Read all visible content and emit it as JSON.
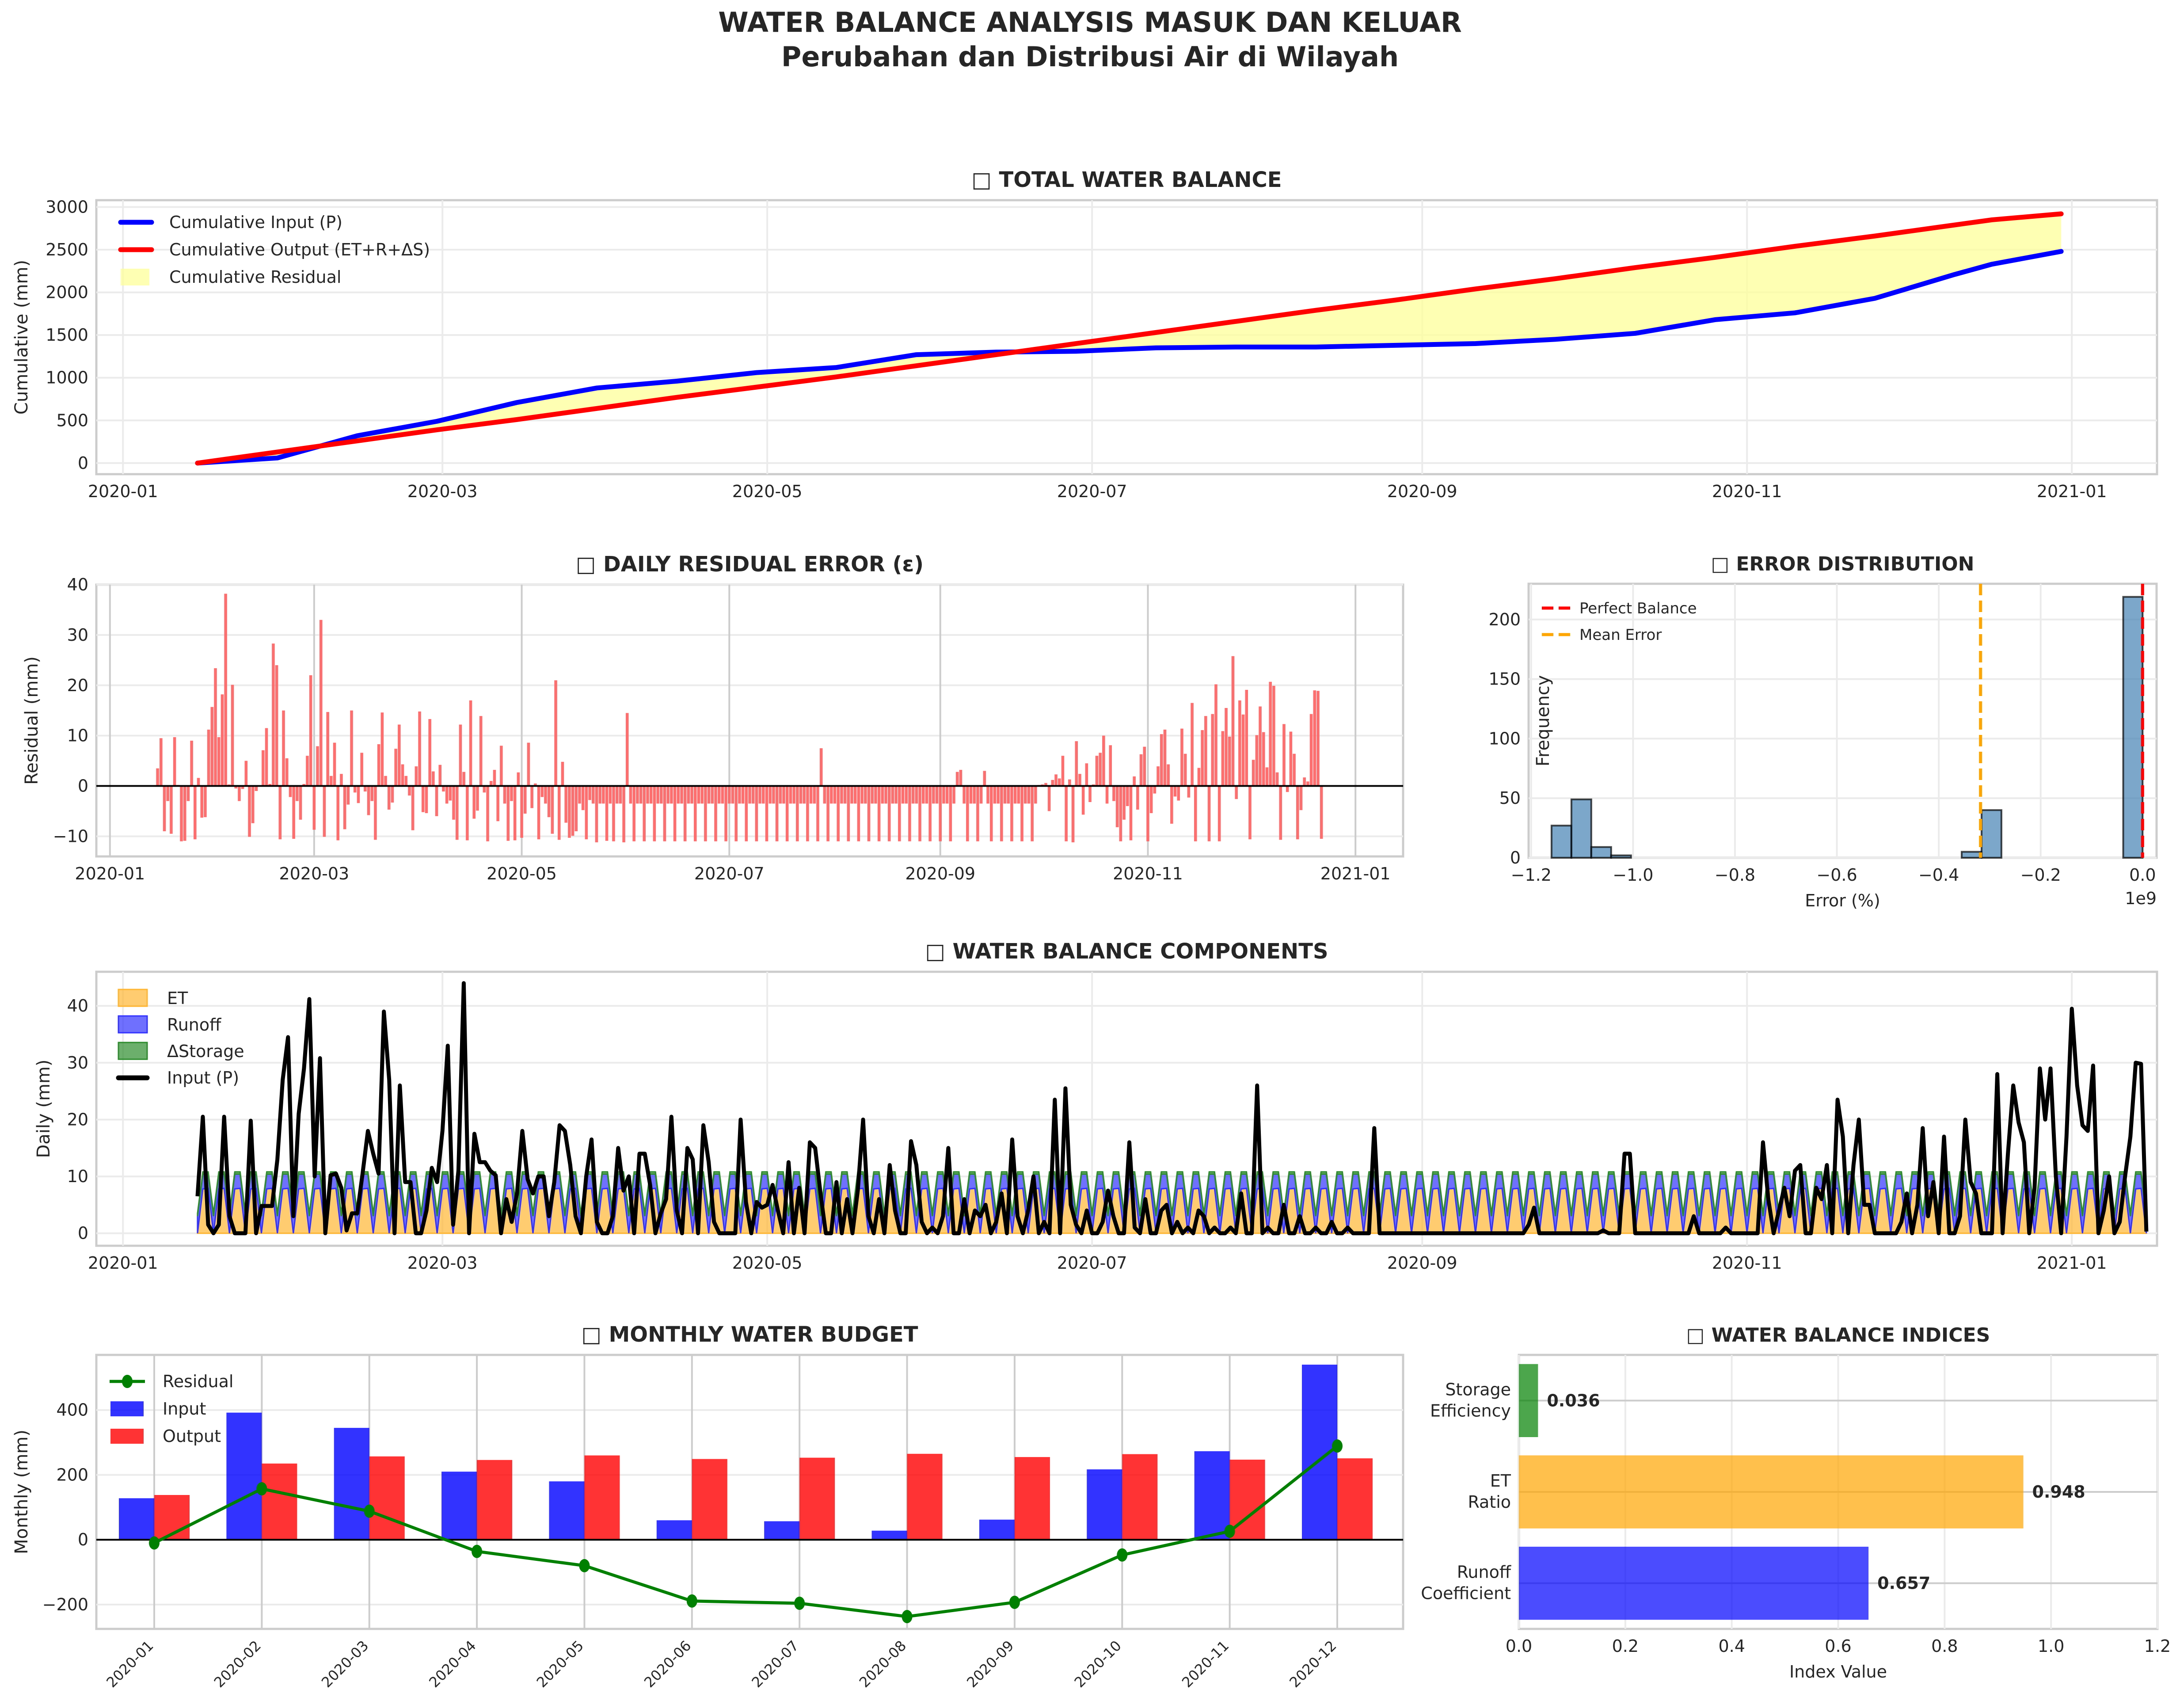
{
  "figure": {
    "title_line1": "WATER BALANCE ANALYSIS MASUK DAN KELUAR",
    "title_line2": "Perubahan dan Distribusi Air di Wilayah"
  },
  "chart_data": [
    {
      "id": "total",
      "type": "line",
      "title": "□ TOTAL WATER BALANCE",
      "xlabel": "",
      "ylabel": "Cumulative (mm)",
      "x_range": [
        "2020-01-01",
        "2021-01-15"
      ],
      "ylim": [
        -130,
        3080
      ],
      "yticks": [
        0,
        500,
        1000,
        1500,
        2000,
        2500,
        3000
      ],
      "xticks": [
        "2020-01",
        "2020-03",
        "2020-05",
        "2020-07",
        "2020-09",
        "2020-11",
        "2021-01"
      ],
      "grid": true,
      "legend_position": "top-left",
      "legend": [
        "Cumulative Input (P)",
        "Cumulative Output (ET+R+ΔS)",
        "Cumulative Residual"
      ],
      "colors": {
        "input": "#0000ff",
        "output": "#ff0000",
        "fill": "#ffff99"
      },
      "x_day_of_year": [
        15,
        30,
        45,
        60,
        75,
        90,
        105,
        120,
        135,
        150,
        165,
        180,
        195,
        210,
        225,
        240,
        255,
        270,
        285,
        300,
        315,
        330,
        345,
        352,
        365
      ],
      "series": [
        {
          "name": "Cumulative Input (P)",
          "values": [
            0,
            60,
            320,
            490,
            710,
            880,
            960,
            1060,
            1120,
            1270,
            1300,
            1310,
            1350,
            1360,
            1360,
            1380,
            1400,
            1450,
            1520,
            1680,
            1760,
            1930,
            2210,
            2330,
            2480
          ]
        },
        {
          "name": "Cumulative Output (ET+R+ΔS)",
          "values": [
            0,
            130,
            260,
            390,
            510,
            640,
            770,
            890,
            1010,
            1140,
            1270,
            1400,
            1530,
            1660,
            1790,
            1910,
            2040,
            2160,
            2290,
            2410,
            2540,
            2660,
            2790,
            2850,
            2920
          ]
        }
      ]
    },
    {
      "id": "residual",
      "type": "bar",
      "title": "□ DAILY RESIDUAL ERROR (ε)",
      "xlabel": "",
      "ylabel": "Residual (mm)",
      "ylim": [
        -14,
        40
      ],
      "yticks": [
        -10,
        0,
        10,
        20,
        30,
        40
      ],
      "xticks": [
        "2020-01",
        "2020-03",
        "2020-05",
        "2020-07",
        "2020-09",
        "2020-11",
        "2021-01"
      ],
      "grid": true,
      "color": "#ff6666",
      "start_day_of_year": 15,
      "values": [
        3.5,
        9.5,
        -9,
        -3,
        -9.5,
        9.7,
        0.2,
        -11,
        -10.9,
        -3,
        9,
        -10.6,
        1.6,
        -6.3,
        -6.2,
        11.2,
        15.7,
        23.4,
        9.7,
        18.2,
        38.2,
        0.3,
        20.1,
        -0.5,
        -3,
        -0.6,
        5,
        -10.1,
        -7.4,
        -1,
        0.1,
        7.1,
        11.5,
        0.4,
        28.3,
        24,
        -10.6,
        15,
        5.5,
        -2.2,
        -10.5,
        -3,
        -6.7,
        0.4,
        6,
        22,
        -8.7,
        7.9,
        33,
        -10.1,
        14.7,
        2,
        8.6,
        -10.8,
        2.4,
        -8.6,
        -3.7,
        15,
        -1.3,
        -3.4,
        6.6,
        -1.1,
        -5.8,
        -3,
        -10.7,
        8.3,
        14.6,
        2,
        -4.7,
        -3.3,
        7.4,
        12.2,
        4.3,
        2,
        -1.9,
        -8.8,
        3.9,
        14.8,
        -5.2,
        -5.4,
        13.3,
        2.9,
        -6,
        4.2,
        -1.1,
        -3.5,
        -2.9,
        -6.7,
        -10.7,
        12.2,
        2.8,
        -10.8,
        17,
        -6.5,
        -4.9,
        13.9,
        -1.3,
        -11,
        1,
        3.2,
        -7,
        8,
        -3.5,
        -10.9,
        -3,
        -10.8,
        2.7,
        -10.3,
        -5.5,
        8.6,
        -4.4,
        0.5,
        -10.6,
        -2.2,
        -3.5,
        -6.2,
        -9.5,
        21,
        -10.7,
        4.8,
        -7.3,
        -10.3,
        -9.9,
        -9,
        -3.5,
        -4.8,
        -10.6,
        -2.8,
        -3.5,
        -11.2,
        -3.5,
        -3.5,
        -10.9,
        -3.5,
        -11,
        -3.5,
        -3.5,
        -11.2,
        14.5,
        -3.5,
        -11,
        -3.5,
        -3.5,
        -11,
        -3.5,
        -3.5,
        -11,
        -3.5,
        -3.5,
        -11,
        -3.5,
        -3.5,
        -11,
        -3.5,
        -3.5,
        -11,
        -3.5,
        -3.5,
        -11,
        -3.5,
        -3.5,
        -11,
        -3.5,
        -3.5,
        -11,
        -3.5,
        -3.5,
        -11,
        -3.5,
        -3.5,
        -11,
        -3.5,
        -3.5,
        -11,
        -3.5,
        -3.5,
        -11,
        -3.5,
        -3.5,
        -11,
        -3.5,
        -3.5,
        -11,
        -3.5,
        -3.5,
        -11,
        -3.5,
        -3.5,
        -11,
        -3.5,
        -3.5,
        -11,
        -3.5,
        -3.5,
        -11,
        7.5,
        -3.5,
        -11,
        -3.5,
        -3.5,
        -11,
        -3.5,
        -3.5,
        -11,
        -3.5,
        -3.5,
        -11,
        -3.5,
        -3.5,
        -11,
        -3.5,
        -3.5,
        -11,
        -3.5,
        -3.5,
        -11,
        -3.5,
        -3.5,
        -11,
        -3.5,
        -3.5,
        -11,
        -3.5,
        -3.5,
        -11,
        -3.5,
        -3.5,
        -11,
        -3.5,
        -3.5,
        -11,
        -3.5,
        -3.5,
        -11,
        -3.5,
        2.8,
        3.2,
        -3.5,
        -11,
        -3.5,
        -3.5,
        -11,
        -3.5,
        3,
        -3.5,
        -11,
        -3.5,
        -3.5,
        -11,
        -3.5,
        -3.5,
        -11,
        -3.5,
        -3.5,
        -11,
        -3.5,
        -3.5,
        -11,
        -3.5,
        0.2,
        0.3,
        0.6,
        -5,
        1.2,
        2.3,
        1.5,
        6,
        -11,
        1.3,
        -11.2,
        8.9,
        2.4,
        -5.7,
        4.5,
        -3.2,
        0.3,
        6,
        6.6,
        10,
        -3.5,
        8.1,
        -3,
        -8.2,
        -11,
        -6.7,
        -4,
        -10.8,
        1.9,
        -4.7,
        6.3,
        7.8,
        -11,
        -5.4,
        -1.5,
        3.9,
        10.3,
        11.2,
        4.3,
        -7.5,
        -2.1,
        -2.9,
        11.4,
        6.4,
        -2.3,
        16.5,
        -11,
        3.6,
        11.1,
        13.9,
        -11,
        14.3,
        20.2,
        -11,
        10.9,
        15.5,
        9.8,
        25.8,
        -2.6,
        17,
        14.2,
        19.1,
        -10.6,
        5.2,
        10.1,
        15.8,
        10.7,
        3.7,
        20.7,
        19.9,
        2.7,
        -10.7,
        12.3,
        -1.2,
        10.8,
        6.4,
        -10.6,
        -4.8,
        1.7,
        0.9,
        14.3,
        19,
        18.9,
        -10.5
      ]
    },
    {
      "id": "error_hist",
      "type": "bar",
      "title": "□ ERROR DISTRIBUTION",
      "xlabel": "Error (%)",
      "ylabel": "Frequency",
      "x_scale_note": "1e9",
      "xlim": [
        -1.205,
        0.0275
      ],
      "ylim": [
        0,
        230
      ],
      "xticks": [
        -1.2,
        -1.0,
        -0.8,
        -0.6,
        -0.4,
        -0.2,
        0.0
      ],
      "xtick_labels": [
        "−1.2",
        "−1.0",
        "−0.8",
        "−0.6",
        "−0.4",
        "−0.2",
        "0.0"
      ],
      "yticks": [
        0,
        50,
        100,
        150,
        200
      ],
      "grid": true,
      "legend_position": "top-left",
      "bar_color": "#4682b4",
      "bins": [
        {
          "x0": -1.16,
          "x1": -1.121,
          "count": 27
        },
        {
          "x0": -1.121,
          "x1": -1.082,
          "count": 49
        },
        {
          "x0": -1.082,
          "x1": -1.043,
          "count": 9
        },
        {
          "x0": -1.043,
          "x1": -1.004,
          "count": 2
        },
        {
          "x0": -0.355,
          "x1": -0.316,
          "count": 5
        },
        {
          "x0": -0.316,
          "x1": -0.277,
          "count": 40
        },
        {
          "x0": -0.038,
          "x1": 0.0,
          "count": 219
        }
      ],
      "vlines": [
        {
          "label": "Perfect Balance",
          "x": 0.0,
          "color": "#ff0000"
        },
        {
          "label": "Mean Error",
          "x": -0.318,
          "color": "#ffa500"
        }
      ]
    },
    {
      "id": "components",
      "type": "area",
      "title": "□ WATER BALANCE COMPONENTS",
      "xlabel": "",
      "ylabel": "Daily (mm)",
      "ylim": [
        -2.2,
        46
      ],
      "yticks": [
        0,
        10,
        20,
        30,
        40
      ],
      "xticks": [
        "2020-01",
        "2020-03",
        "2020-05",
        "2020-07",
        "2020-09",
        "2020-11",
        "2021-01"
      ],
      "grid": true,
      "legend_position": "top-left",
      "legend": [
        "ET",
        "Runoff",
        "ΔStorage",
        "Input (P)"
      ],
      "colors": {
        "et": "#ffb733",
        "runoff": "#3333ff",
        "storage": "#2e8b2e",
        "input": "#000000"
      },
      "start_day_of_year": 15,
      "pattern_note": "stacked components repeat with a ~3-day cycle: ET ~8 mm, Runoff ~+2.5 mm, ΔStorage ~+0.3 mm, dropping to ~0 every third day",
      "et_cycle": [
        0,
        7.8,
        7.9
      ],
      "runoff_cycle": [
        3,
        2.6,
        2.5
      ],
      "storage_cycle": [
        0.5,
        0.4,
        0.4
      ],
      "input_values": [
        6.5,
        20.5,
        1.5,
        0,
        1.5,
        20.5,
        3,
        0,
        0,
        0,
        19.8,
        0,
        4.8,
        4.8,
        4.8,
        13,
        27,
        34.5,
        3,
        21,
        29,
        41.2,
        10,
        30.8,
        0,
        10.2,
        10.5,
        8,
        0.5,
        3.5,
        3.5,
        10.5,
        18,
        14,
        10.5,
        39,
        27,
        0,
        26,
        9,
        9,
        0,
        0,
        4,
        11.5,
        9,
        18,
        33,
        1.5,
        11,
        44,
        0,
        17.5,
        12.5,
        12.5,
        11,
        10.2,
        0,
        6,
        2,
        7,
        18,
        9.5,
        7,
        10,
        10,
        3,
        9,
        19,
        18,
        12,
        3,
        0,
        10,
        16.5,
        2,
        0,
        0,
        3,
        15,
        7.5,
        10,
        0,
        14,
        14,
        8.5,
        0,
        3.5,
        6,
        20.5,
        4,
        0,
        15,
        13,
        0,
        19,
        12.5,
        2,
        0,
        0,
        0,
        0,
        20,
        5.5,
        0,
        5.5,
        4.5,
        5,
        8.5,
        4,
        0,
        12.5,
        0,
        8,
        0,
        16,
        15,
        7,
        0,
        0,
        9,
        0,
        6,
        0,
        7.5,
        20,
        3,
        0,
        6,
        0,
        12,
        4,
        0,
        0,
        16.2,
        12,
        2,
        0,
        1,
        0,
        3,
        15,
        0,
        0,
        6,
        0,
        4,
        3,
        5,
        0,
        2,
        7,
        0,
        16.5,
        3,
        0,
        4,
        10,
        0,
        2,
        0,
        23.5,
        0,
        25.5,
        5,
        1.5,
        0,
        4,
        0,
        0,
        2,
        7.5,
        3,
        0,
        0,
        16,
        1,
        0,
        6,
        0,
        0,
        4,
        5,
        0,
        2,
        0,
        1,
        0,
        4,
        3,
        0,
        1,
        0,
        0,
        1,
        0,
        7,
        0,
        0,
        26,
        0,
        1,
        0,
        0,
        5,
        0,
        0,
        3,
        0,
        0,
        1,
        0,
        0,
        2,
        0,
        0,
        1,
        0,
        0,
        0,
        0,
        18.5,
        0,
        0,
        0,
        0,
        0,
        0,
        0,
        0,
        0,
        0,
        0,
        0,
        0,
        0,
        0,
        0,
        0,
        0,
        0,
        0,
        0,
        0,
        0,
        0,
        0,
        0,
        0,
        0,
        1.5,
        4.5,
        0,
        0,
        0,
        0,
        0,
        0,
        0,
        0,
        0,
        0,
        0,
        0,
        0.5,
        0,
        0,
        0,
        14,
        14,
        0,
        0,
        0,
        0,
        0,
        0,
        0,
        0,
        0,
        0,
        0,
        3,
        0,
        0,
        0,
        0,
        0,
        1,
        0,
        0,
        0,
        0,
        0,
        0,
        16,
        6,
        0,
        4,
        8,
        3,
        11,
        12,
        0,
        0,
        8,
        6,
        12,
        0,
        23.5,
        17,
        0,
        12,
        20,
        5,
        5,
        0,
        0,
        0,
        0,
        0,
        2,
        7,
        0,
        5,
        18.5,
        3,
        9,
        0,
        17,
        0,
        0,
        3,
        20,
        9,
        7,
        0,
        0,
        0,
        28,
        0,
        14,
        26,
        19.5,
        16,
        0,
        8,
        29,
        20,
        29,
        10,
        0,
        17,
        39.5,
        26,
        19,
        18,
        29.5,
        0,
        4,
        10,
        0,
        2,
        10,
        17,
        30,
        29.8,
        0.3
      ]
    },
    {
      "id": "monthly",
      "type": "bar",
      "title": "□ MONTHLY WATER BUDGET",
      "xlabel": "",
      "ylabel": "Monthly (mm)",
      "ylim": [
        -275,
        570
      ],
      "yticks": [
        -200,
        0,
        200,
        400
      ],
      "grid": true,
      "legend_position": "top-left",
      "categories": [
        "2020-01",
        "2020-02",
        "2020-03",
        "2020-04",
        "2020-05",
        "2020-06",
        "2020-07",
        "2020-08",
        "2020-09",
        "2020-10",
        "2020-11",
        "2020-12"
      ],
      "series": [
        {
          "name": "Input",
          "color": "#0000ff",
          "values": [
            128,
            392,
            345,
            210,
            180,
            60,
            57,
            28,
            62,
            217,
            273,
            540
          ]
        },
        {
          "name": "Output",
          "color": "#ff0000",
          "values": [
            138,
            235,
            257,
            246,
            260,
            249,
            253,
            265,
            255,
            264,
            247,
            251
          ]
        },
        {
          "name": "Residual",
          "color": "#008000",
          "type": "line",
          "values": [
            -10,
            157,
            88,
            -36,
            -80,
            -189,
            -196,
            -237,
            -193,
            -47,
            26,
            289
          ]
        }
      ]
    },
    {
      "id": "indices",
      "type": "bar",
      "orientation": "horizontal",
      "title": "□ WATER BALANCE INDICES",
      "xlabel": "Index Value",
      "ylabel": "",
      "xlim": [
        0,
        1.2
      ],
      "xticks": [
        0.0,
        0.2,
        0.4,
        0.6,
        0.8,
        1.0,
        1.2
      ],
      "grid": true,
      "categories": [
        "Runoff\nCoefficient",
        "ET\nRatio",
        "Storage\nEfficiency"
      ],
      "values": [
        0.657,
        0.948,
        0.036
      ],
      "value_labels": [
        "0.657",
        "0.948",
        "0.036"
      ],
      "colors": [
        "#0000ff",
        "#ffa500",
        "#008000"
      ]
    }
  ]
}
